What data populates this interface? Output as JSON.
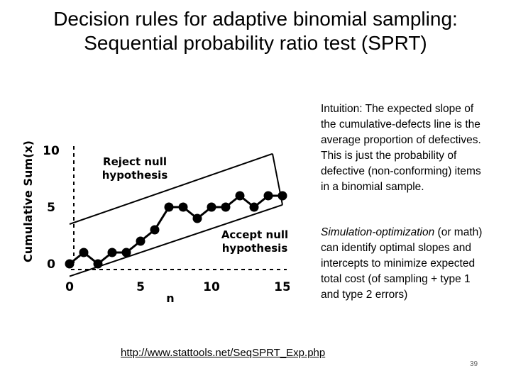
{
  "slide": {
    "title": "Decision rules for adaptive binomial sampling: Sequential probability ratio test (SPRT)",
    "intuition": "Intuition: The expected slope of the cumulative-defects line is the average proportion of defectives.  This is just the probability of defective (non-conforming) items in a binomial sample.",
    "simopt_lead": "Simulation-optimization",
    "simopt_rest": " (or math) can identify optimal slopes and intercepts to minimize expected total cost (of sampling + type 1 and type 2 errors)",
    "link": "http://www.stattools.net/SeqSPRT_Exp.php",
    "page_number": "39"
  },
  "chart_data": {
    "type": "line",
    "title": "",
    "xlabel": "n",
    "ylabel": "Cumulative Sum(x)",
    "xlim": [
      0,
      15
    ],
    "ylim": [
      0,
      10
    ],
    "x_ticks": [
      "0",
      "5",
      "10",
      "15"
    ],
    "y_ticks": [
      "0",
      "5",
      "10"
    ],
    "series": [
      {
        "name": "Cumulative defects",
        "x": [
          0,
          1,
          2,
          3,
          4,
          5,
          6,
          7,
          8,
          9,
          10,
          11,
          12,
          13,
          14,
          15
        ],
        "y": [
          0,
          1,
          0,
          1,
          1,
          2,
          3,
          5,
          5,
          4,
          5,
          5,
          6,
          5,
          6,
          6
        ]
      }
    ],
    "boundaries": [
      {
        "name": "Reject null hypothesis",
        "x": [
          0,
          14.3
        ],
        "y": [
          3.5,
          9.7
        ]
      },
      {
        "name": "Accept null hypothesis",
        "x": [
          0,
          15
        ],
        "y": [
          -1.1,
          5.2
        ]
      }
    ],
    "annotations": [
      "Reject null hypothesis",
      "Accept null hypothesis"
    ],
    "grid": false,
    "colors": {
      "line": "#000000",
      "marker": "#000000"
    }
  }
}
